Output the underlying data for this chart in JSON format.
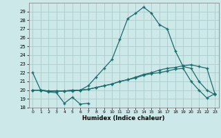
{
  "xlabel": "Humidex (Indice chaleur)",
  "bg_color": "#cce8e8",
  "grid_color": "#aacccc",
  "line_color": "#1a6b6b",
  "marker": "+",
  "ylim": [
    18,
    30
  ],
  "yticks": [
    18,
    19,
    20,
    21,
    22,
    23,
    24,
    25,
    26,
    27,
    28,
    29
  ],
  "xticks": [
    0,
    1,
    2,
    3,
    4,
    5,
    6,
    7,
    8,
    9,
    10,
    11,
    12,
    13,
    14,
    15,
    16,
    17,
    18,
    19,
    20,
    21,
    22,
    23
  ],
  "line1_x": [
    0,
    1,
    2,
    3,
    4,
    5,
    6,
    7
  ],
  "line1_y": [
    22.0,
    20.0,
    19.8,
    19.7,
    18.5,
    19.2,
    18.4,
    18.5
  ],
  "line2_x": [
    0,
    1,
    2,
    3,
    4,
    5,
    6,
    7,
    8,
    9,
    10,
    11,
    12,
    13,
    14,
    15,
    16,
    17,
    18,
    19,
    20,
    21,
    22,
    23
  ],
  "line2_y": [
    20.0,
    20.0,
    19.9,
    19.9,
    19.9,
    19.9,
    20.0,
    20.1,
    20.3,
    20.5,
    20.7,
    21.0,
    21.2,
    21.5,
    21.8,
    22.0,
    22.3,
    22.5,
    22.6,
    22.8,
    22.9,
    22.7,
    22.5,
    19.6
  ],
  "line3_x": [
    0,
    1,
    2,
    3,
    4,
    5,
    6,
    7,
    8,
    9,
    10,
    11,
    12,
    13,
    14,
    15,
    16,
    17,
    18,
    19,
    20,
    21,
    22,
    23
  ],
  "line3_y": [
    20.0,
    20.0,
    19.9,
    19.9,
    19.9,
    20.0,
    20.0,
    20.1,
    20.3,
    20.5,
    20.7,
    21.0,
    21.2,
    21.4,
    21.7,
    21.9,
    22.0,
    22.2,
    22.4,
    22.5,
    21.0,
    20.0,
    19.1,
    19.6
  ],
  "line4_x": [
    0,
    1,
    2,
    3,
    4,
    5,
    6,
    7,
    8,
    9,
    10,
    11,
    12,
    13,
    14,
    15,
    16,
    17,
    18,
    19,
    20,
    21,
    22,
    23
  ],
  "line4_y": [
    20.0,
    20.0,
    19.9,
    19.9,
    19.9,
    20.0,
    20.0,
    20.5,
    21.5,
    22.5,
    23.5,
    25.8,
    28.2,
    28.8,
    29.5,
    28.8,
    27.5,
    27.0,
    24.5,
    22.7,
    22.5,
    21.0,
    20.0,
    19.5
  ]
}
